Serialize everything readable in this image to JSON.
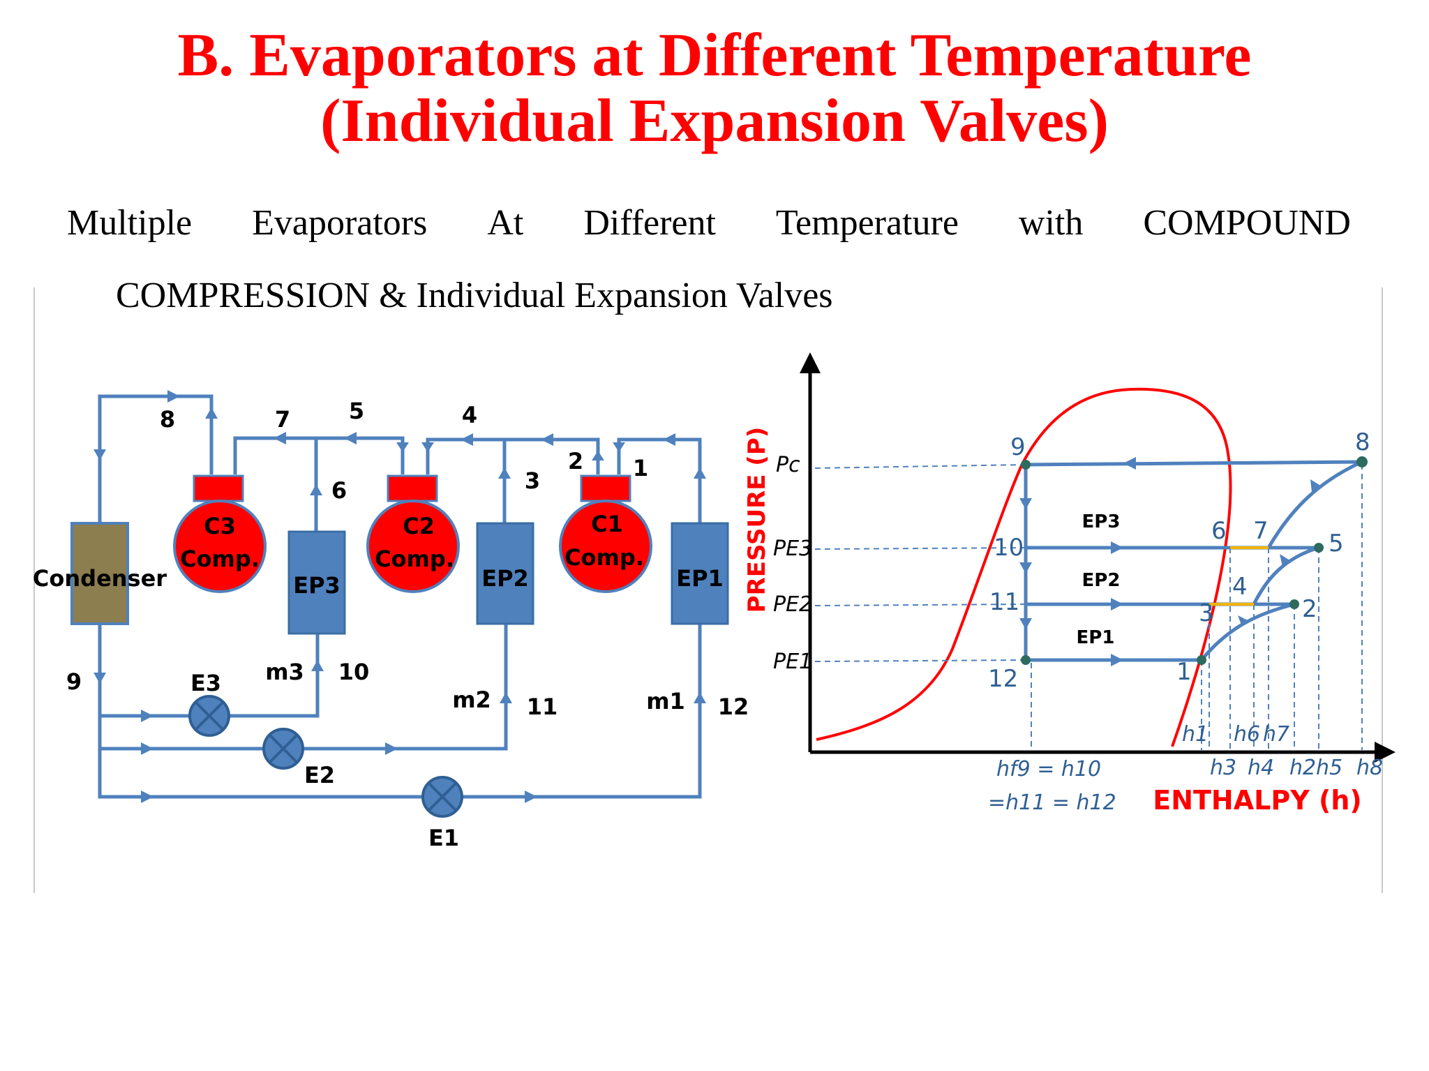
{
  "title": {
    "line1": "B. Evaporators at Different Temperature",
    "line2": "(Individual Expansion Valves)"
  },
  "subtitle": {
    "words": [
      "Multiple",
      "Evaporators",
      "At",
      "Different",
      "Temperature",
      "with",
      "COMPOUND"
    ],
    "line2": "COMPRESSION & Individual Expansion Valves"
  },
  "schematic": {
    "condenser": "Condenser",
    "compressors": [
      {
        "l1": "C3",
        "l2": "Comp."
      },
      {
        "l1": "C2",
        "l2": "Comp."
      },
      {
        "l1": "C1",
        "l2": "Comp."
      }
    ],
    "evaporators": [
      "EP3",
      "EP2",
      "EP1"
    ],
    "valves": [
      "E3",
      "E2",
      "E1"
    ],
    "flows": [
      "m3",
      "m2",
      "m1"
    ],
    "points": [
      "8",
      "7",
      "5",
      "4",
      "3",
      "2",
      "1",
      "6",
      "9",
      "10",
      "11",
      "12"
    ]
  },
  "ph_chart": {
    "y_axis_label": "PRESSURE (P)",
    "x_axis_label": "ENTHALPY (h)",
    "pressure_ticks": [
      "Pc",
      "PE3",
      "PE2",
      "PE1"
    ],
    "state_points": [
      "9",
      "8",
      "10",
      "6",
      "7",
      "5",
      "11",
      "4",
      "3",
      "2",
      "12",
      "1"
    ],
    "evaporator_labels": [
      "EP3",
      "EP2",
      "EP1"
    ],
    "enthalpy_labels": [
      "h1",
      "h6",
      "h7",
      "h3",
      "h4",
      "h2",
      "h5",
      "h8"
    ],
    "hf_equation_line1": "hf9 = h10",
    "hf_equation_line2": "=h11 = h12"
  },
  "colors": {
    "title": "#ff0000",
    "pipe": "#4f81bd",
    "compressor": "#ff0000",
    "evaporator": "#4f81bd",
    "condenser": "#8c7e4f",
    "dome": "#ff0000"
  }
}
